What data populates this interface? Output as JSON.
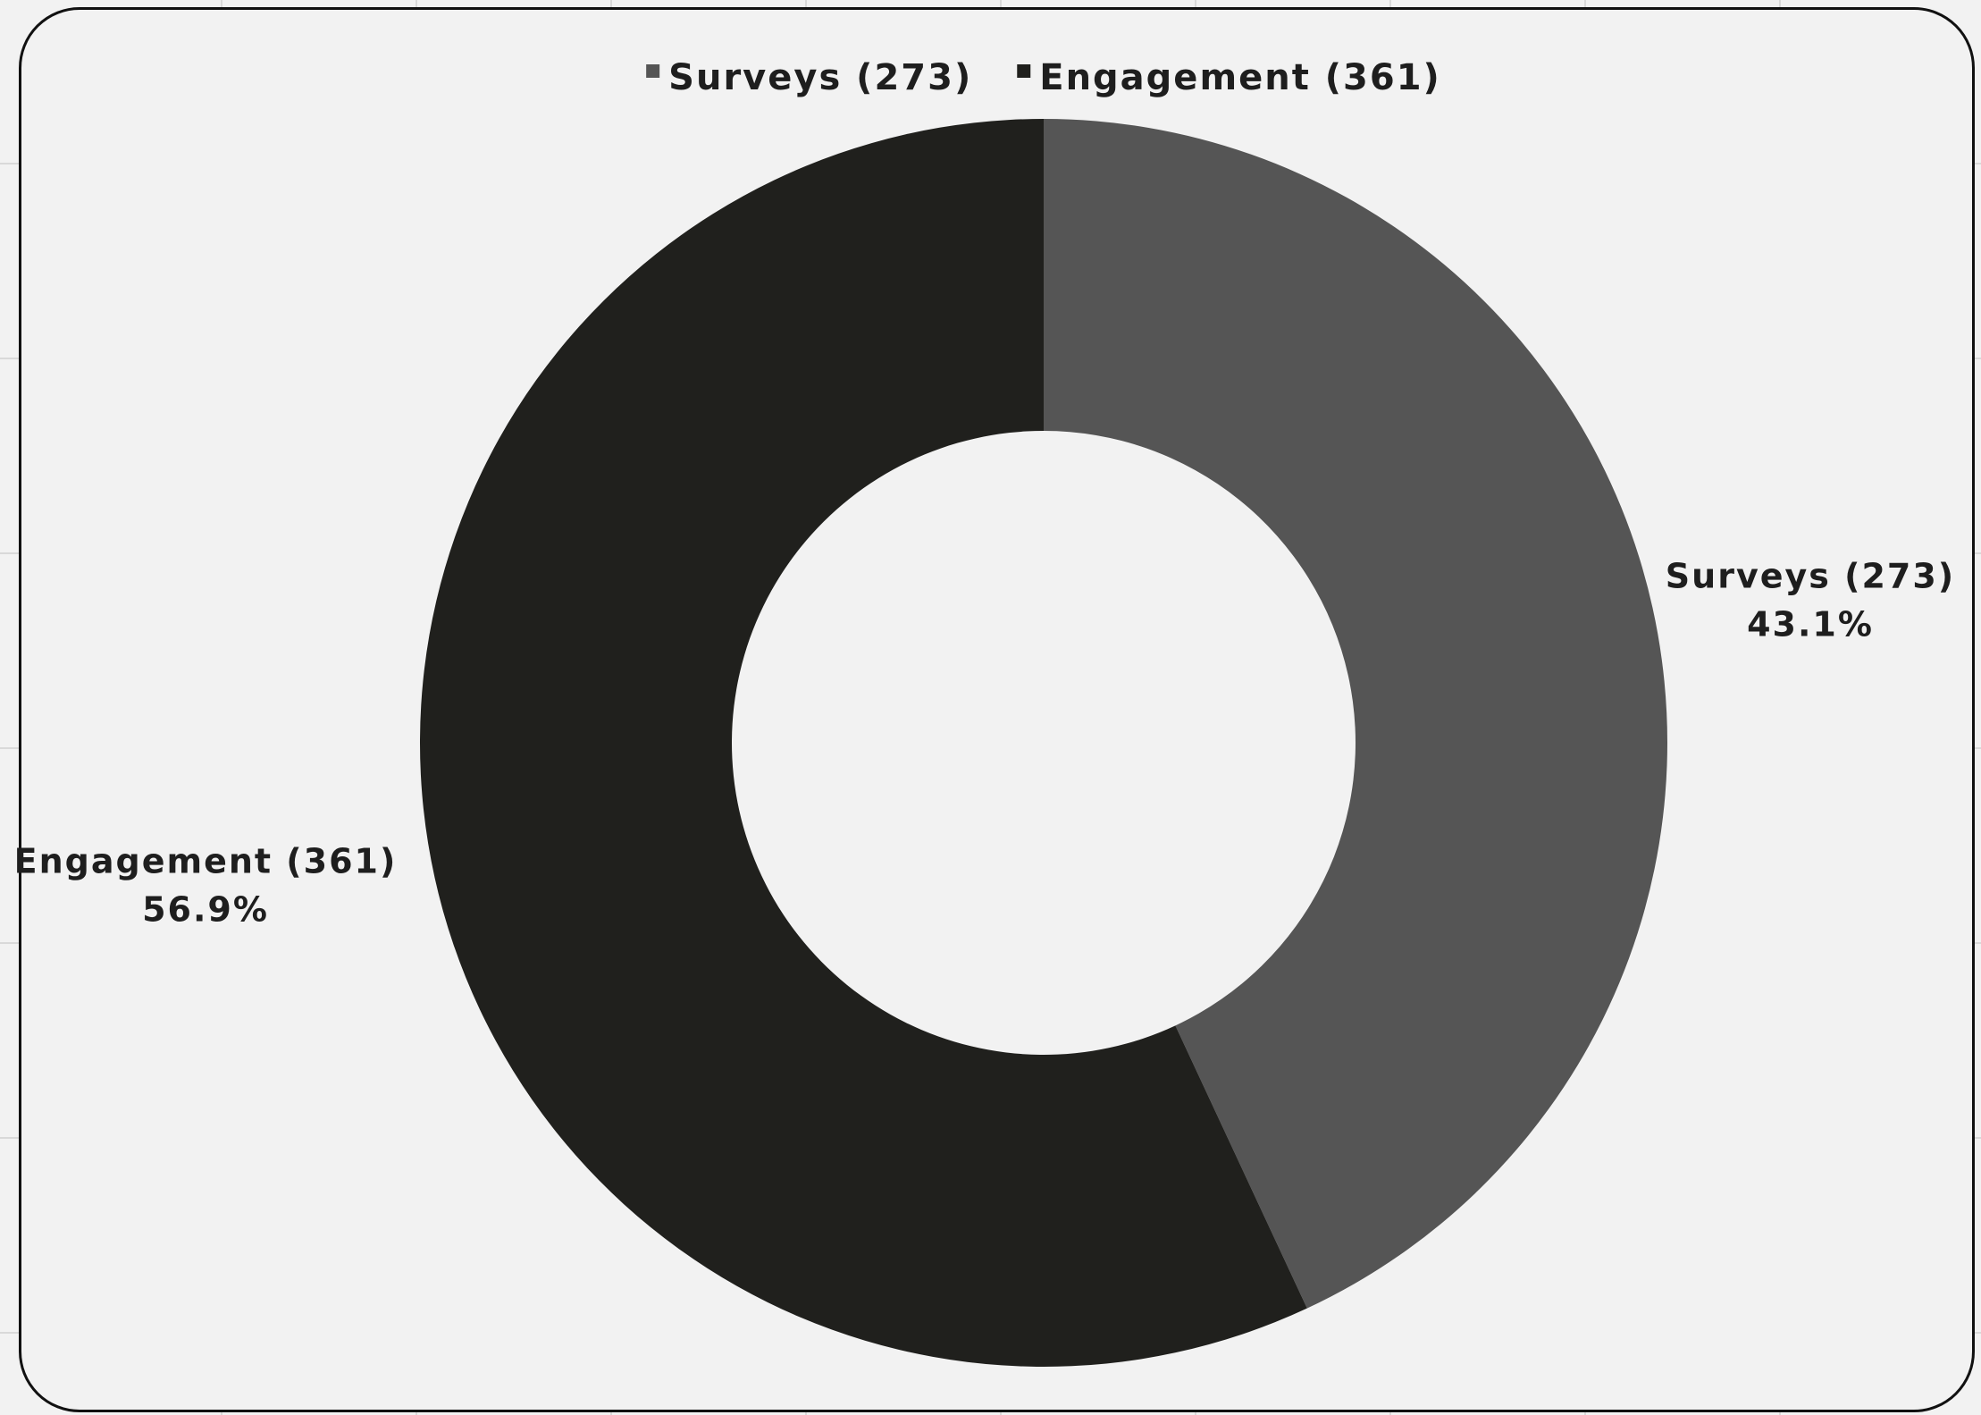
{
  "chart_data": {
    "type": "pie",
    "variant": "donut",
    "title": "",
    "legend_position": "top",
    "slices": [
      {
        "label": "Surveys (273)",
        "value": 273,
        "percent_label": "43.1%",
        "color": "#555555"
      },
      {
        "label": "Engagement (361)",
        "value": 361,
        "percent_label": "56.9%",
        "color": "#20201d"
      }
    ]
  },
  "colors": {
    "background": "#f2f2f2",
    "border": "#111111",
    "text": "#1e1e1e"
  }
}
